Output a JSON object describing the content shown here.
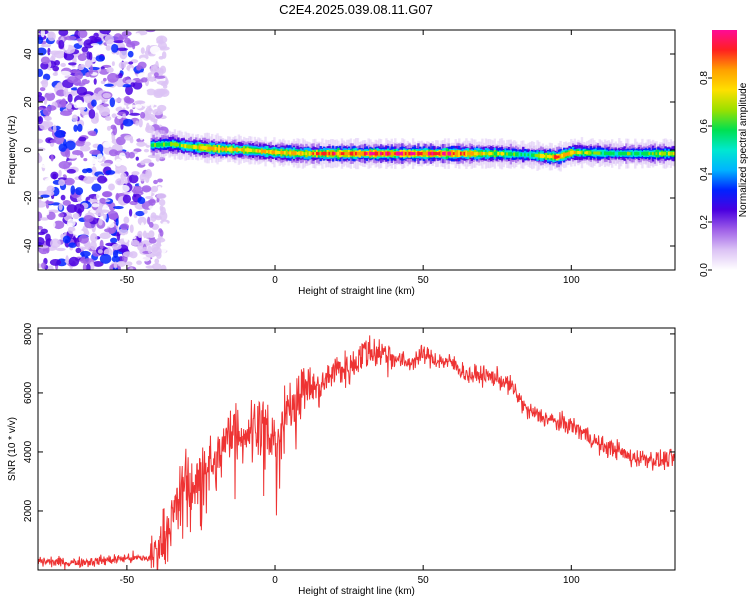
{
  "title": "C2E4.2025.039.08.11.G07",
  "chart_data": [
    {
      "type": "heatmap",
      "xlabel": "Height of straight line (km)",
      "ylabel": "Frequency (Hz)",
      "xlim": [
        -80,
        135
      ],
      "ylim": [
        -50,
        50
      ],
      "xticks": [
        -50,
        0,
        50,
        100
      ],
      "yticks": [
        -40,
        -20,
        0,
        20,
        40
      ],
      "colorbar": {
        "label": "Normalized spectral amplitude",
        "range": [
          0,
          1
        ],
        "ticks": [
          "0.0",
          "0.2",
          "0.4",
          "0.6",
          "0.8"
        ],
        "palette": [
          "#ffffff",
          "#dcc3f5",
          "#a060e8",
          "#4a00e0",
          "#0022ff",
          "#00b4ff",
          "#00e8d0",
          "#00e050",
          "#9be000",
          "#ffe000",
          "#ffa000",
          "#ff2020",
          "#ff0a96"
        ]
      },
      "ridge": {
        "x": [
          -42,
          -35,
          -30,
          -20,
          -10,
          0,
          10,
          20,
          40,
          60,
          75,
          85,
          95,
          100,
          115,
          135
        ],
        "freq": [
          2,
          2.5,
          1.5,
          0.5,
          0,
          -1,
          -1.5,
          -1.5,
          -1.5,
          -1.5,
          -1.5,
          -2,
          -3,
          -1,
          -1.5,
          -1.5
        ],
        "amplitude": [
          0.6,
          0.65,
          0.7,
          0.85,
          0.75,
          0.8,
          0.8,
          0.9,
          0.95,
          0.95,
          0.7,
          0.55,
          0.9,
          0.75,
          0.55,
          0.7
        ]
      },
      "noise_region": [
        -80,
        -40
      ]
    },
    {
      "type": "line",
      "xlabel": "Height of straight line (km)",
      "ylabel": "SNR (10 * v/v)",
      "xlim": [
        -80,
        135
      ],
      "ylim": [
        0,
        8200
      ],
      "xticks": [
        -50,
        0,
        50,
        100
      ],
      "yticks": [
        2000,
        4000,
        6000,
        8000
      ],
      "color": "#ee3333",
      "series": [
        {
          "x": [
            -80,
            -70,
            -60,
            -50,
            -42,
            -38,
            -33,
            -30,
            -27,
            -24,
            -20,
            -15,
            -10,
            -5,
            0,
            5,
            10,
            15,
            20,
            25,
            30,
            35,
            40,
            45,
            50,
            55,
            60,
            65,
            70,
            75,
            80,
            85,
            90,
            95,
            100,
            105,
            110,
            115,
            120,
            125,
            130,
            135
          ],
          "values": [
            300,
            250,
            300,
            400,
            400,
            1000,
            2200,
            3400,
            2600,
            3800,
            3500,
            4800,
            4600,
            5200,
            4300,
            5600,
            6300,
            6100,
            6800,
            6800,
            7400,
            7400,
            7200,
            7000,
            7300,
            7100,
            7000,
            6600,
            6600,
            6500,
            6200,
            5400,
            5200,
            5000,
            4900,
            4600,
            4200,
            4100,
            3800,
            3800,
            3700,
            3800
          ]
        }
      ]
    }
  ]
}
